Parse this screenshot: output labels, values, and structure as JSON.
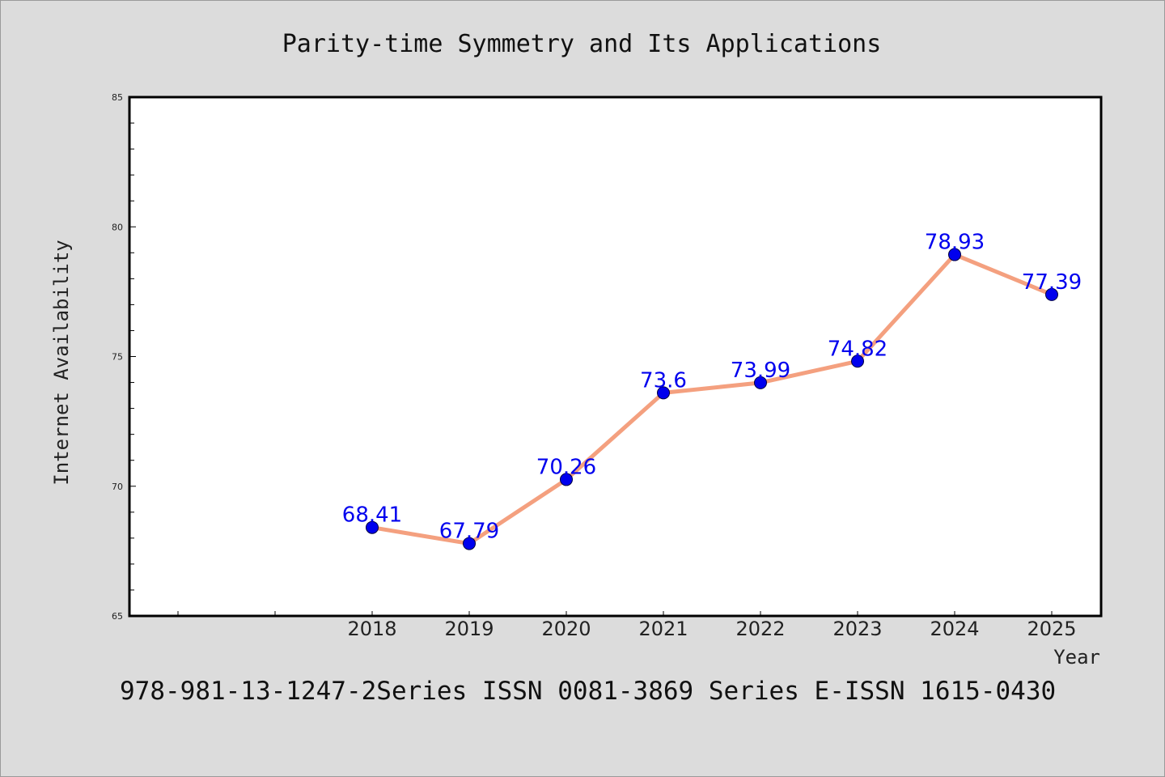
{
  "chart_data": {
    "type": "line",
    "title": "Parity-time Symmetry and Its Applications",
    "xlabel": "Year",
    "ylabel": "Internet Availability",
    "x_ticks": [
      "2018",
      "2019",
      "2020",
      "2021",
      "2022",
      "2023",
      "2024",
      "2025"
    ],
    "y_ticks": [
      "65",
      "70",
      "75",
      "80",
      "85"
    ],
    "ylim": [
      65,
      85
    ],
    "grid": false,
    "series": [
      {
        "x": [
          2018,
          2019,
          2020,
          2021,
          2022,
          2023,
          2024,
          2025
        ],
        "values": [
          68.41,
          67.79,
          70.26,
          73.6,
          73.99,
          74.82,
          78.93,
          77.39
        ],
        "labels": [
          "68.41",
          "67.79",
          "70.26",
          "73.6",
          "73.99",
          "74.82",
          "78.93",
          "77.39"
        ],
        "line_color": "#f4a07f",
        "marker_color": "#0000ee"
      }
    ],
    "footer": "978-981-13-1247-2Series ISSN 0081-3869 Series E-ISSN 1615-0430"
  }
}
